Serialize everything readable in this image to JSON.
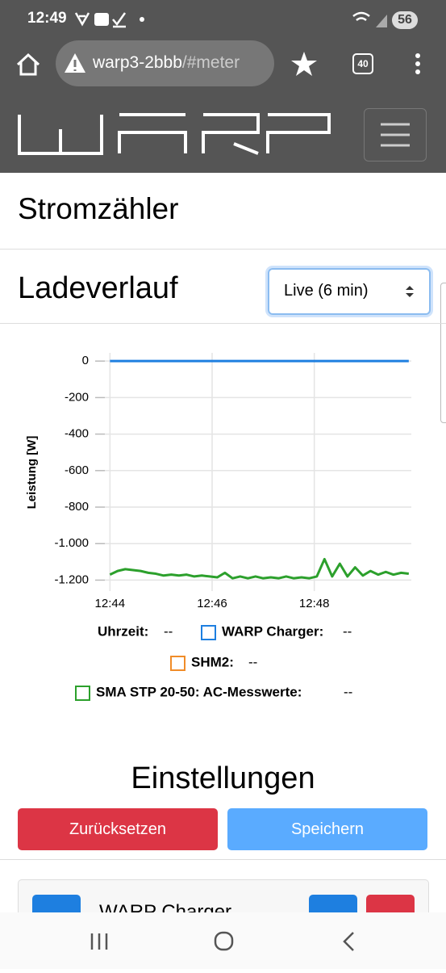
{
  "status_bar": {
    "time": "12:49",
    "battery": "56"
  },
  "browser": {
    "url_host": "warp3-2bbb",
    "url_path": "/#meter",
    "tabs": "40"
  },
  "page_title": "Stromzähler",
  "section_title": "Ladeverlauf",
  "range_select": "Live (6 min)",
  "chart_data": {
    "type": "line",
    "y_label": "Leistung [W]",
    "x": [
      764.0,
      764.15,
      764.3,
      764.45,
      764.6,
      764.75,
      764.9,
      765.05,
      765.2,
      765.35,
      765.5,
      765.65,
      765.8,
      765.95,
      766.1,
      766.25,
      766.4,
      766.55,
      766.7,
      766.85,
      767.0,
      767.15,
      767.3,
      767.45,
      767.6,
      767.75,
      767.9,
      768.05,
      768.2,
      768.35,
      768.5,
      768.65,
      768.8,
      768.95,
      769.1,
      769.25,
      769.4,
      769.55,
      769.7,
      769.85
    ],
    "xlim": [
      763.9,
      769.9
    ],
    "xticks": [
      {
        "value": 764,
        "label": "12:44"
      },
      {
        "value": 766,
        "label": "12:46"
      },
      {
        "value": 768,
        "label": "12:48"
      }
    ],
    "ylim": [
      -1260,
      45
    ],
    "yticks": [
      0,
      -200,
      -400,
      -600,
      -800,
      {
        "value": -1000,
        "label": "-1.000"
      },
      {
        "value": -1200,
        "label": "-1.200"
      }
    ],
    "grid": true,
    "legend": {
      "time_label": "Uhrzeit:",
      "time_value": "--"
    },
    "series": [
      {
        "name": "WARP Charger:",
        "color": "#1e7fe0",
        "current": "--",
        "values": [
          0,
          0,
          0,
          0,
          0,
          0,
          0,
          0,
          0,
          0,
          0,
          0,
          0,
          0,
          0,
          0,
          0,
          0,
          0,
          0,
          0,
          0,
          0,
          0,
          0,
          0,
          0,
          0,
          0,
          0,
          0,
          0,
          0,
          0,
          0,
          0,
          0,
          0,
          0,
          0
        ]
      },
      {
        "name": "SHM2:",
        "color": "#f08c28",
        "current": "--",
        "values": [
          null,
          null,
          null,
          null,
          null,
          null,
          null,
          null,
          null,
          null,
          null,
          null,
          null,
          null,
          null,
          null,
          null,
          null,
          null,
          null,
          null,
          null,
          null,
          null,
          null,
          null,
          null,
          null,
          null,
          null,
          null,
          null,
          null,
          null,
          null,
          null,
          null,
          null,
          null,
          null
        ]
      },
      {
        "name": "SMA STP 20-50: AC-Messwerte:",
        "color": "#2ca02c",
        "current": "--",
        "values": [
          -1170,
          -1150,
          -1140,
          -1145,
          -1150,
          -1160,
          -1165,
          -1175,
          -1170,
          -1175,
          -1170,
          -1180,
          -1175,
          -1180,
          -1185,
          -1160,
          -1190,
          -1180,
          -1190,
          -1180,
          -1190,
          -1185,
          -1190,
          -1180,
          -1190,
          -1185,
          -1190,
          -1180,
          -1085,
          -1180,
          -1110,
          -1180,
          -1130,
          -1175,
          -1150,
          -1170,
          -1155,
          -1170,
          -1160,
          -1165
        ]
      }
    ]
  },
  "settings": {
    "title": "Einstellungen",
    "reset": "Zurücksetzen",
    "save": "Speichern",
    "card_title": "WARP Charger"
  }
}
